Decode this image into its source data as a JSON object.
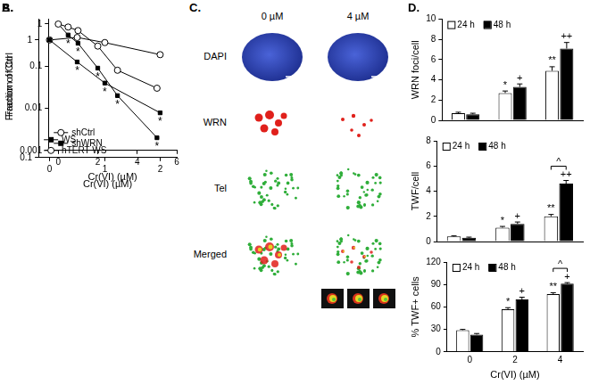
{
  "chart_data": [
    {
      "type": "line",
      "title": "A.",
      "x_label": "Cr(VI) (µM)",
      "y_label": "Fraction of Ctrl",
      "x": [
        0,
        0.5,
        1,
        2,
        3,
        5
      ],
      "series": [
        {
          "name": "shCtrl",
          "color": "#000000",
          "marker": "open_circle",
          "values": [
            1,
            0.85,
            0.7,
            0.3,
            0.08,
            0.03
          ]
        },
        {
          "name": "shWRN",
          "color": "#000000",
          "marker": "square",
          "values": [
            1,
            0.55,
            0.35,
            0.09,
            0.02,
            0.002
          ]
        }
      ],
      "xlim": [
        -0.5,
        6
      ],
      "xticks": [
        0,
        2,
        4,
        6
      ],
      "ylim": [
        0.001,
        1.3
      ],
      "yticks": [
        0.001,
        0.01,
        0.1,
        1
      ],
      "log": "y",
      "grid": false,
      "legend": "lower left",
      "annotations": [
        {
          "text": "*",
          "x": 0.5,
          "series": "shWRN"
        },
        {
          "text": "*",
          "x": 1,
          "series": "shWRN"
        },
        {
          "text": "*",
          "x": 2,
          "series": "shWRN"
        },
        {
          "text": "*",
          "x": 3,
          "series": "shWRN"
        },
        {
          "text": "*",
          "x": 5,
          "series": "shWRN"
        }
      ]
    },
    {
      "type": "line",
      "title": "B.",
      "x_label": "Cr(VI) (µM)",
      "y_label": "Fraction of Ctrl",
      "x": [
        0,
        0.5,
        1,
        2
      ],
      "series": [
        {
          "name": "WS",
          "color": "#000000",
          "marker": "square",
          "values": [
            1,
            0.65,
            0.43,
            0.24
          ]
        },
        {
          "name": "hTERT WS",
          "color": "#000000",
          "marker": "open_circle",
          "values": [
            1,
            1.05,
            0.95,
            0.75
          ]
        }
      ],
      "xlim": [
        -0.2,
        2.3
      ],
      "xticks": [
        0,
        1,
        2
      ],
      "ylim": [
        0.1,
        1.5
      ],
      "yticks": [
        0.1,
        1
      ],
      "log": "y",
      "grid": false,
      "legend": "lower left",
      "annotations": [
        {
          "text": "*",
          "x": 0.5,
          "series": "WS"
        },
        {
          "text": "*",
          "x": 1,
          "series": "WS"
        },
        {
          "text": "*",
          "x": 2,
          "series": "WS"
        }
      ]
    },
    {
      "type": "bar",
      "title": "D.",
      "y_label": "WRN foci/cell",
      "categories": [
        "0",
        "2",
        "4"
      ],
      "series": [
        {
          "name": "24 h",
          "color": "#ffffff",
          "values": [
            0.7,
            2.7,
            4.9
          ],
          "errors": [
            0.1,
            0.2,
            0.4
          ]
        },
        {
          "name": "48 h",
          "color": "#000000",
          "values": [
            0.6,
            3.3,
            7.1
          ],
          "errors": [
            0.1,
            0.3,
            0.6
          ]
        }
      ],
      "ylim": [
        0,
        10
      ],
      "yticks": [
        0,
        2,
        4,
        6,
        8,
        10
      ],
      "grid": false,
      "legend": "upper left",
      "tick_labels": "y",
      "annotations": [
        {
          "text": "*",
          "category": "2",
          "series": "24 h"
        },
        {
          "text": "+",
          "category": "2",
          "series": "48 h"
        },
        {
          "text": "**",
          "category": "4",
          "series": "24 h"
        },
        {
          "text": "++",
          "category": "4",
          "series": "48 h"
        }
      ]
    },
    {
      "type": "bar",
      "y_label": "TWF/cell",
      "categories": [
        "0",
        "2",
        "4"
      ],
      "series": [
        {
          "name": "24 h",
          "color": "#ffffff",
          "values": [
            0.4,
            1.1,
            2.0
          ],
          "errors": [
            0.05,
            0.1,
            0.15
          ]
        },
        {
          "name": "48 h",
          "color": "#000000",
          "values": [
            0.3,
            1.4,
            4.6
          ],
          "errors": [
            0.05,
            0.15,
            0.25
          ]
        }
      ],
      "ylim": [
        0,
        8
      ],
      "yticks": [
        0,
        2,
        4,
        6,
        8
      ],
      "grid": false,
      "legend": "upper left",
      "tick_labels": "y",
      "annotations": [
        {
          "text": "*",
          "category": "2",
          "series": "24 h"
        },
        {
          "text": "+",
          "category": "2",
          "series": "48 h"
        },
        {
          "text": "**",
          "category": "4",
          "series": "24 h"
        },
        {
          "text": "++",
          "category": "4",
          "series": "48 h"
        },
        {
          "text": "^",
          "category": "4",
          "series": [
            "24 h",
            "48 h"
          ]
        }
      ]
    },
    {
      "type": "bar",
      "y_label": "% TWF+ cells",
      "x_label": "Cr(VI) (µM)",
      "categories": [
        "0",
        "2",
        "4"
      ],
      "series": [
        {
          "name": "24 h",
          "color": "#ffffff",
          "values": [
            29,
            57,
            77
          ],
          "errors": [
            1,
            2,
            2
          ]
        },
        {
          "name": "48 h",
          "color": "#000000",
          "values": [
            23,
            70,
            91
          ],
          "errors": [
            1.5,
            3,
            1.5
          ]
        }
      ],
      "ylim": [
        0,
        120
      ],
      "yticks": [
        0,
        30,
        60,
        90,
        120
      ],
      "grid": false,
      "legend": "upper left",
      "annotations": [
        {
          "text": "*",
          "category": "2",
          "series": "24 h"
        },
        {
          "text": "+",
          "category": "2",
          "series": "48 h"
        },
        {
          "text": "**",
          "category": "4",
          "series": "24 h"
        },
        {
          "text": "+",
          "category": "4",
          "series": "48 h"
        },
        {
          "text": "^",
          "category": "4",
          "series": [
            "24 h",
            "48 h"
          ]
        }
      ]
    }
  ],
  "image_panel": {
    "label": "C.",
    "columns": [
      "0 µM",
      "4 µM"
    ],
    "rows": [
      "DAPI",
      "WRN",
      "Tel",
      "Merged"
    ]
  }
}
